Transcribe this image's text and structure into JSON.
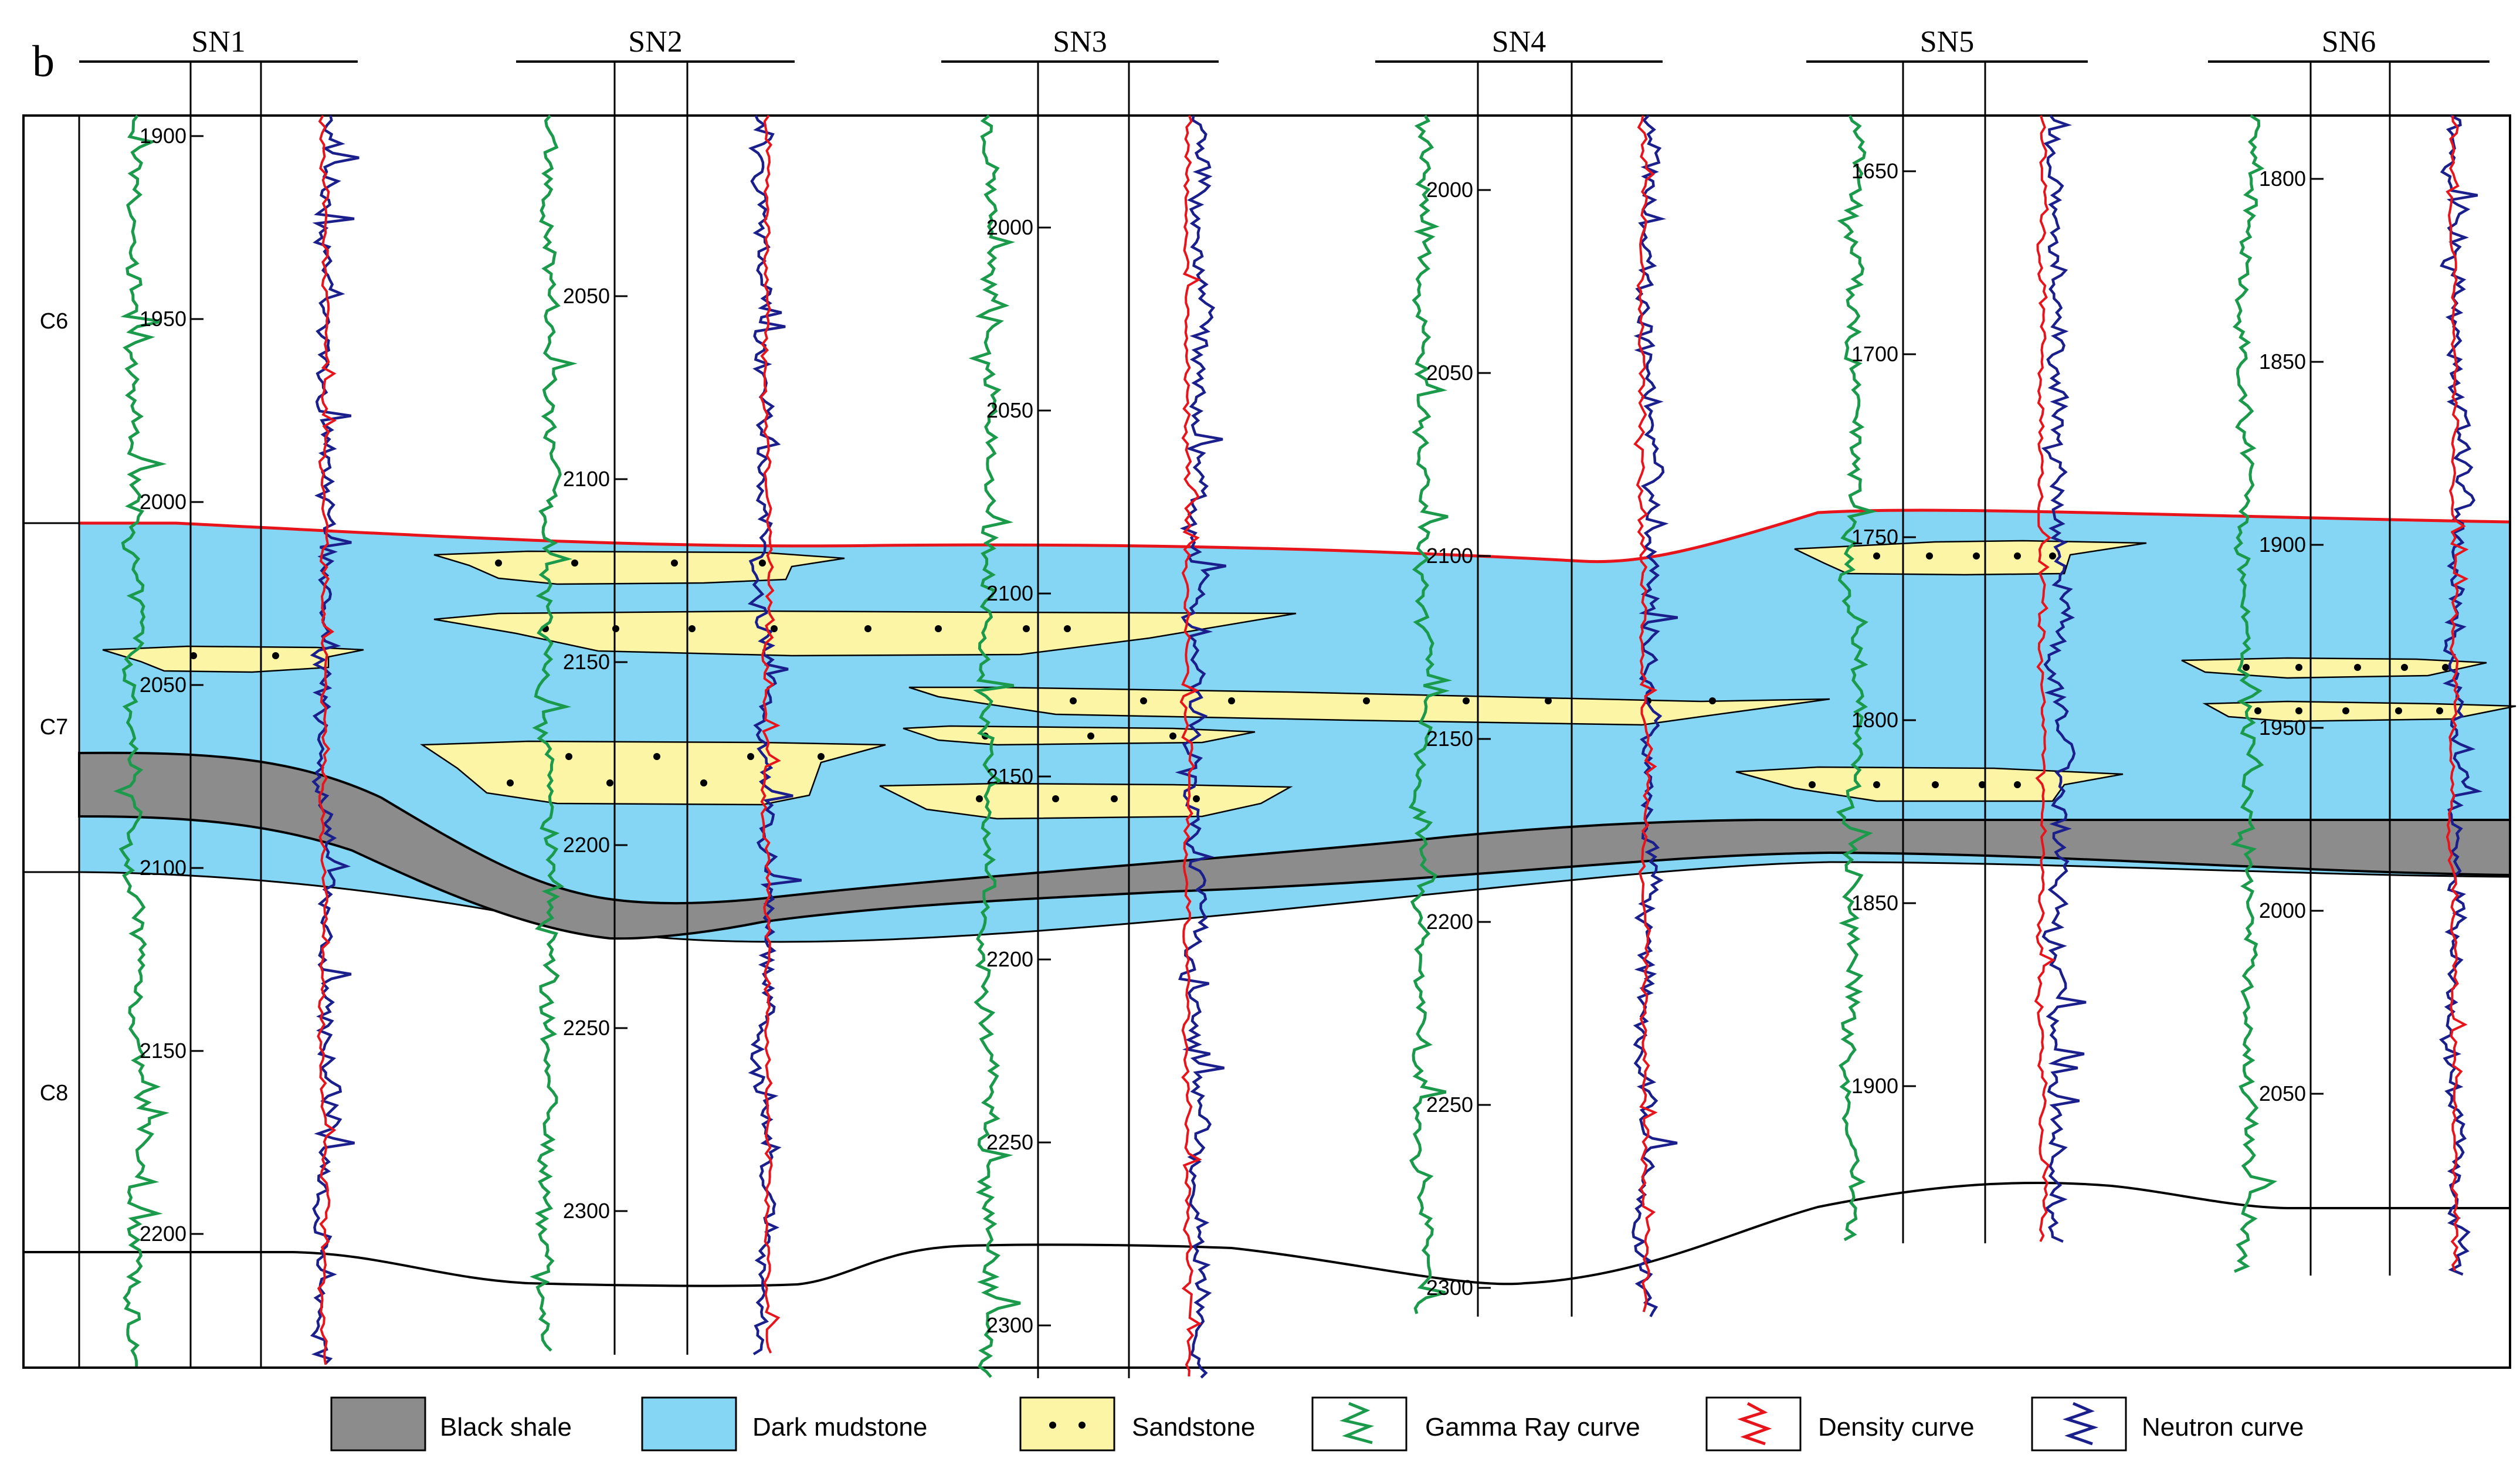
{
  "panel_label": "b",
  "units": [
    "C6",
    "C7",
    "C8"
  ],
  "wells": [
    {
      "name": "SN1",
      "depth_labels": [
        "1900",
        "1950",
        "2000",
        "2050",
        "2100",
        "2150",
        "2200"
      ]
    },
    {
      "name": "SN2",
      "depth_labels": [
        "2050",
        "2100",
        "2150",
        "2200",
        "2250",
        "2300"
      ]
    },
    {
      "name": "SN3",
      "depth_labels": [
        "2000",
        "2050",
        "2100",
        "2150",
        "2200",
        "2250",
        "2300"
      ]
    },
    {
      "name": "SN4",
      "depth_labels": [
        "2000",
        "2050",
        "2100",
        "2150",
        "2200",
        "2250",
        "2300"
      ]
    },
    {
      "name": "SN5",
      "depth_labels": [
        "1650",
        "1700",
        "1750",
        "1800",
        "1850",
        "1900"
      ]
    },
    {
      "name": "SN6",
      "depth_labels": [
        "1800",
        "1850",
        "1900",
        "1950",
        "2000",
        "2050"
      ]
    }
  ],
  "legend": [
    {
      "label": "Black shale",
      "kind": "black-shale",
      "color": "#8c8c8c"
    },
    {
      "label": "Dark mudstone",
      "kind": "dark-mudstone",
      "color": "#84d6f4"
    },
    {
      "label": "Sandstone",
      "kind": "sandstone",
      "color": "#fdf5a6"
    },
    {
      "label": "Gamma Ray curve",
      "kind": "gamma-ray",
      "color": "#1a9a4a"
    },
    {
      "label": "Density curve",
      "kind": "density",
      "color": "#e8141b"
    },
    {
      "label": "Neutron curve",
      "kind": "neutron",
      "color": "#1a1f8c"
    }
  ],
  "colors": {
    "top_c7_line": "#e8141b",
    "mudstone": "#84d6f4",
    "shale": "#8c8c8c",
    "sand": "#fdf5a6"
  }
}
